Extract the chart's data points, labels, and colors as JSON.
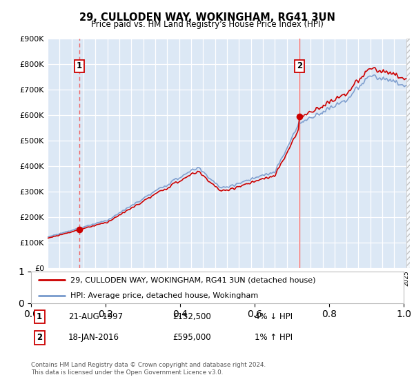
{
  "title": "29, CULLODEN WAY, WOKINGHAM, RG41 3UN",
  "subtitle": "Price paid vs. HM Land Registry's House Price Index (HPI)",
  "sale1_label": "21-AUG-1997",
  "sale1_price": 152500,
  "sale1_note": "4% ↓ HPI",
  "sale2_label": "18-JAN-2016",
  "sale2_price": 595000,
  "sale2_note": "1% ↑ HPI",
  "legend1": "29, CULLODEN WAY, WOKINGHAM, RG41 3UN (detached house)",
  "legend2": "HPI: Average price, detached house, Wokingham",
  "footer": "Contains HM Land Registry data © Crown copyright and database right 2024.\nThis data is licensed under the Open Government Licence v3.0.",
  "hpi_color": "#7799cc",
  "price_color": "#cc0000",
  "marker_color": "#cc0000",
  "dashed_color": "#ee6666",
  "ylim_max": 900000,
  "ylim_min": 0,
  "sale1_year": 1997.64,
  "sale2_year": 2016.05,
  "plot_bg": "#dce8f5",
  "fig_bg": "#ffffff"
}
